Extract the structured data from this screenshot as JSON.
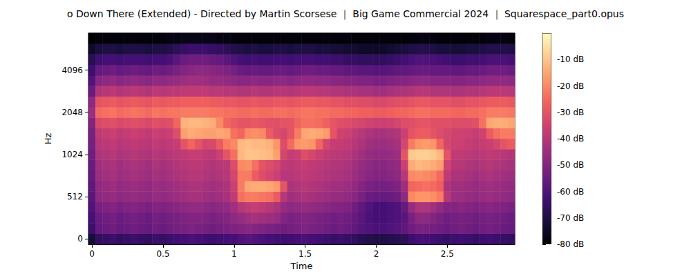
{
  "chart_data": {
    "type": "heatmap",
    "title": "o Down There (Extended) - Directed by Martin Scorsese ｜ Big Game Commercial 2024 ｜ Squarespace_part0.opus",
    "x_label": "Time",
    "y_label": "Hz",
    "x": [
      "0",
      null,
      null,
      null,
      null,
      null,
      null,
      null,
      null,
      null,
      "0.5",
      null,
      null,
      null,
      null,
      null,
      null,
      null,
      null,
      null,
      "1",
      null,
      null,
      null,
      null,
      null,
      null,
      null,
      null,
      null,
      "1.5",
      null,
      null,
      null,
      null,
      null,
      null,
      null,
      null,
      null,
      "2",
      null,
      null,
      null,
      null,
      null,
      null,
      null,
      null,
      null,
      "2.5",
      null,
      null,
      null,
      null,
      null,
      null,
      null,
      null,
      null
    ],
    "y": [
      "0",
      null,
      null,
      null,
      "512",
      null,
      null,
      null,
      "1024",
      null,
      null,
      null,
      "2048",
      null,
      null,
      null,
      "4096",
      null,
      null,
      null
    ],
    "values": [
      [
        -72,
        -66,
        -65,
        -64,
        -66,
        -65,
        -64,
        -65,
        -66,
        -64,
        -65,
        -64,
        -63,
        -62,
        -61,
        -62,
        -63,
        -64,
        -63,
        -62,
        -62,
        -60,
        -59,
        -60,
        -61,
        -62,
        -63,
        -64,
        -63,
        -62,
        -61,
        -62,
        -63,
        -64,
        -65,
        -64,
        -65,
        -66,
        -68,
        -69,
        -70,
        -70,
        -69,
        -68,
        -67,
        -64,
        -62,
        -62,
        -63,
        -64,
        -65,
        -64,
        -63,
        -64,
        -65,
        -64,
        -63,
        -64,
        -65,
        -66
      ],
      [
        -64,
        -56,
        -55,
        -54,
        -56,
        -55,
        -54,
        -55,
        -56,
        -54,
        -55,
        -54,
        -53,
        -52,
        -51,
        -52,
        -53,
        -54,
        -53,
        -52,
        -51,
        -50,
        -49,
        -50,
        -51,
        -52,
        -53,
        -54,
        -53,
        -52,
        -51,
        -52,
        -53,
        -54,
        -55,
        -54,
        -55,
        -57,
        -59,
        -60,
        -61,
        -61,
        -60,
        -59,
        -57,
        -54,
        -52,
        -52,
        -53,
        -54,
        -55,
        -54,
        -53,
        -54,
        -55,
        -54,
        -53,
        -54,
        -55,
        -56
      ],
      [
        -62,
        -55,
        -54,
        -53,
        -55,
        -54,
        -53,
        -54,
        -55,
        -53,
        -54,
        -53,
        -52,
        -51,
        -50,
        -50,
        -51,
        -52,
        -51,
        -50,
        -48,
        -46,
        -44,
        -43,
        -44,
        -45,
        -46,
        -50,
        -52,
        -51,
        -50,
        -51,
        -52,
        -53,
        -54,
        -53,
        -54,
        -56,
        -58,
        -61,
        -62,
        -62,
        -61,
        -60,
        -58,
        -52,
        -48,
        -48,
        -50,
        -52,
        -54,
        -53,
        -52,
        -53,
        -54,
        -53,
        -52,
        -53,
        -54,
        -55
      ],
      [
        -60,
        -52,
        -51,
        -50,
        -52,
        -51,
        -50,
        -51,
        -52,
        -50,
        -51,
        -50,
        -49,
        -48,
        -47,
        -47,
        -48,
        -49,
        -48,
        -47,
        -44,
        -40,
        -38,
        -37,
        -38,
        -40,
        -42,
        -46,
        -48,
        -47,
        -46,
        -47,
        -48,
        -49,
        -50,
        -50,
        -51,
        -54,
        -57,
        -60,
        -62,
        -62,
        -61,
        -60,
        -56,
        -46,
        -42,
        -42,
        -44,
        -47,
        -50,
        -50,
        -49,
        -50,
        -51,
        -50,
        -49,
        -50,
        -51,
        -52
      ],
      [
        -58,
        -48,
        -47,
        -46,
        -48,
        -47,
        -46,
        -47,
        -48,
        -46,
        -47,
        -46,
        -45,
        -44,
        -43,
        -43,
        -44,
        -45,
        -44,
        -43,
        -38,
        -24,
        -22,
        -22,
        -23,
        -24,
        -28,
        -40,
        -44,
        -43,
        -42,
        -43,
        -44,
        -45,
        -46,
        -46,
        -47,
        -49,
        -52,
        -55,
        -56,
        -56,
        -55,
        -54,
        -48,
        -20,
        -18,
        -18,
        -19,
        -22,
        -40,
        -45,
        -45,
        -46,
        -47,
        -46,
        -45,
        -46,
        -47,
        -48
      ],
      [
        -57,
        -47,
        -46,
        -45,
        -47,
        -46,
        -45,
        -46,
        -47,
        -45,
        -46,
        -45,
        -44,
        -43,
        -42,
        -42,
        -43,
        -44,
        -43,
        -42,
        -36,
        -22,
        -15,
        -14,
        -14,
        -15,
        -17,
        -30,
        -42,
        -41,
        -40,
        -41,
        -42,
        -43,
        -44,
        -44,
        -45,
        -47,
        -50,
        -52,
        -53,
        -53,
        -52,
        -51,
        -45,
        -26,
        -25,
        -24,
        -25,
        -27,
        -42,
        -44,
        -44,
        -45,
        -46,
        -45,
        -44,
        -45,
        -46,
        -47
      ],
      [
        -56,
        -45,
        -44,
        -43,
        -45,
        -44,
        -43,
        -44,
        -45,
        -43,
        -44,
        -43,
        -42,
        -41,
        -40,
        -40,
        -41,
        -42,
        -41,
        -40,
        -34,
        -22,
        -22,
        -28,
        -32,
        -34,
        -36,
        -40,
        -40,
        -39,
        -38,
        -39,
        -40,
        -41,
        -42,
        -42,
        -43,
        -45,
        -47,
        -49,
        -50,
        -50,
        -49,
        -48,
        -40,
        -20,
        -19,
        -20,
        -21,
        -25,
        -38,
        -42,
        -42,
        -43,
        -44,
        -43,
        -42,
        -43,
        -44,
        -45
      ],
      [
        -55,
        -44,
        -43,
        -42,
        -44,
        -43,
        -42,
        -43,
        -44,
        -42,
        -43,
        -42,
        -41,
        -40,
        -39,
        -39,
        -40,
        -41,
        -40,
        -39,
        -32,
        -20,
        -19,
        -24,
        -30,
        -32,
        -34,
        -38,
        -39,
        -38,
        -37,
        -38,
        -39,
        -40,
        -41,
        -41,
        -42,
        -44,
        -46,
        -48,
        -49,
        -49,
        -48,
        -47,
        -36,
        -14,
        -12,
        -13,
        -14,
        -16,
        -35,
        -40,
        -40,
        -41,
        -42,
        -41,
        -40,
        -41,
        -42,
        -43
      ],
      [
        -54,
        -42,
        -41,
        -40,
        -42,
        -41,
        -40,
        -41,
        -42,
        -40,
        -41,
        -40,
        -39,
        -38,
        -37,
        -37,
        -38,
        -39,
        -36,
        -30,
        -24,
        -12,
        -10,
        -10,
        -11,
        -12,
        -16,
        -34,
        -37,
        -36,
        -32,
        -34,
        -36,
        -38,
        -39,
        -39,
        -40,
        -42,
        -44,
        -46,
        -47,
        -47,
        -46,
        -45,
        -30,
        -9,
        -8,
        -8,
        -9,
        -12,
        -30,
        -38,
        -38,
        -39,
        -40,
        -39,
        -38,
        -39,
        -40,
        -41
      ],
      [
        -53,
        -40,
        -39,
        -38,
        -40,
        -39,
        -38,
        -39,
        -40,
        -38,
        -39,
        -38,
        -37,
        -30,
        -26,
        -30,
        -34,
        -33,
        -28,
        -22,
        -20,
        -12,
        -11,
        -12,
        -12,
        -13,
        -18,
        -32,
        -25,
        -18,
        -17,
        -18,
        -26,
        -34,
        -37,
        -37,
        -38,
        -40,
        -42,
        -44,
        -45,
        -45,
        -44,
        -43,
        -34,
        -22,
        -18,
        -17,
        -18,
        -26,
        -34,
        -36,
        -36,
        -37,
        -38,
        -37,
        -36,
        -34,
        -30,
        -28
      ],
      [
        -52,
        -38,
        -37,
        -36,
        -38,
        -37,
        -36,
        -37,
        -38,
        -36,
        -37,
        -36,
        -32,
        -16,
        -14,
        -15,
        -16,
        -16,
        -15,
        -16,
        -24,
        -26,
        -20,
        -19,
        -20,
        -28,
        -32,
        -34,
        -30,
        -22,
        -15,
        -14,
        -15,
        -17,
        -30,
        -35,
        -36,
        -38,
        -40,
        -42,
        -43,
        -43,
        -42,
        -41,
        -36,
        -30,
        -28,
        -28,
        -30,
        -32,
        -34,
        -35,
        -35,
        -36,
        -37,
        -35,
        -28,
        -24,
        -22,
        -22
      ],
      [
        -50,
        -33,
        -32,
        -31,
        -33,
        -32,
        -31,
        -32,
        -33,
        -31,
        -32,
        -31,
        -26,
        -13,
        -12,
        -12,
        -13,
        -14,
        -20,
        -26,
        -28,
        -30,
        -30,
        -29,
        -30,
        -31,
        -31,
        -30,
        -30,
        -26,
        -24,
        -24,
        -25,
        -27,
        -30,
        -31,
        -32,
        -33,
        -34,
        -35,
        -36,
        -36,
        -35,
        -34,
        -32,
        -31,
        -30,
        -30,
        -31,
        -31,
        -31,
        -32,
        -32,
        -32,
        -31,
        -24,
        -15,
        -14,
        -14,
        -15
      ],
      [
        -45,
        -25,
        -24,
        -23,
        -25,
        -24,
        -23,
        -24,
        -25,
        -23,
        -24,
        -23,
        -23,
        -22,
        -22,
        -22,
        -22,
        -23,
        -23,
        -24,
        -24,
        -25,
        -25,
        -24,
        -25,
        -25,
        -24,
        -24,
        -25,
        -24,
        -23,
        -23,
        -24,
        -24,
        -25,
        -25,
        -26,
        -26,
        -27,
        -27,
        -28,
        -28,
        -27,
        -26,
        -26,
        -25,
        -24,
        -24,
        -25,
        -25,
        -25,
        -26,
        -26,
        -25,
        -25,
        -24,
        -22,
        -22,
        -22,
        -23
      ],
      [
        -48,
        -30,
        -29,
        -28,
        -30,
        -29,
        -28,
        -29,
        -30,
        -28,
        -29,
        -28,
        -28,
        -27,
        -27,
        -27,
        -27,
        -28,
        -28,
        -29,
        -29,
        -30,
        -30,
        -29,
        -30,
        -30,
        -29,
        -29,
        -30,
        -29,
        -28,
        -28,
        -29,
        -29,
        -30,
        -30,
        -31,
        -31,
        -32,
        -32,
        -33,
        -33,
        -32,
        -31,
        -31,
        -30,
        -29,
        -29,
        -30,
        -30,
        -30,
        -31,
        -31,
        -30,
        -30,
        -29,
        -28,
        -28,
        -28,
        -29
      ],
      [
        -55,
        -41,
        -40,
        -39,
        -41,
        -40,
        -39,
        -40,
        -41,
        -39,
        -40,
        -39,
        -39,
        -38,
        -38,
        -38,
        -38,
        -39,
        -39,
        -40,
        -40,
        -41,
        -41,
        -40,
        -41,
        -41,
        -40,
        -40,
        -41,
        -40,
        -39,
        -39,
        -40,
        -40,
        -41,
        -41,
        -42,
        -42,
        -43,
        -43,
        -44,
        -44,
        -43,
        -42,
        -42,
        -41,
        -40,
        -40,
        -41,
        -41,
        -41,
        -42,
        -42,
        -41,
        -41,
        -40,
        -39,
        -39,
        -39,
        -40
      ],
      [
        -60,
        -49,
        -48,
        -47,
        -49,
        -48,
        -47,
        -48,
        -49,
        -47,
        -48,
        -47,
        -46,
        -45,
        -44,
        -44,
        -45,
        -46,
        -46,
        -47,
        -48,
        -49,
        -49,
        -48,
        -49,
        -49,
        -48,
        -48,
        -49,
        -48,
        -47,
        -47,
        -48,
        -48,
        -49,
        -49,
        -50,
        -50,
        -51,
        -51,
        -52,
        -52,
        -51,
        -50,
        -50,
        -49,
        -48,
        -48,
        -49,
        -49,
        -49,
        -50,
        -50,
        -49,
        -49,
        -48,
        -47,
        -47,
        -47,
        -48
      ],
      [
        -64,
        -56,
        -55,
        -54,
        -56,
        -55,
        -54,
        -55,
        -56,
        -54,
        -55,
        -54,
        -52,
        -50,
        -49,
        -48,
        -48,
        -49,
        -50,
        -51,
        -53,
        -55,
        -56,
        -55,
        -56,
        -56,
        -55,
        -55,
        -56,
        -55,
        -54,
        -54,
        -55,
        -55,
        -56,
        -56,
        -57,
        -57,
        -58,
        -58,
        -59,
        -59,
        -58,
        -57,
        -57,
        -56,
        -55,
        -55,
        -56,
        -56,
        -56,
        -57,
        -57,
        -56,
        -56,
        -55,
        -54,
        -54,
        -54,
        -55
      ],
      [
        -68,
        -63,
        -62,
        -62,
        -63,
        -62,
        -62,
        -62,
        -63,
        -62,
        -62,
        -61,
        -58,
        -55,
        -54,
        -54,
        -54,
        -55,
        -56,
        -58,
        -60,
        -62,
        -63,
        -62,
        -63,
        -63,
        -62,
        -62,
        -63,
        -62,
        -62,
        -62,
        -63,
        -63,
        -64,
        -64,
        -65,
        -65,
        -66,
        -66,
        -66,
        -66,
        -65,
        -64,
        -63,
        -61,
        -60,
        -60,
        -61,
        -62,
        -63,
        -64,
        -64,
        -63,
        -63,
        -62,
        -61,
        -61,
        -61,
        -62
      ],
      [
        -74,
        -71,
        -70,
        -70,
        -71,
        -70,
        -70,
        -70,
        -71,
        -70,
        -70,
        -69,
        -67,
        -65,
        -64,
        -64,
        -64,
        -65,
        -66,
        -67,
        -69,
        -70,
        -71,
        -70,
        -71,
        -71,
        -70,
        -70,
        -71,
        -70,
        -70,
        -70,
        -71,
        -71,
        -72,
        -72,
        -73,
        -73,
        -74,
        -74,
        -74,
        -74,
        -73,
        -72,
        -71,
        -70,
        -69,
        -69,
        -70,
        -71,
        -71,
        -72,
        -72,
        -71,
        -71,
        -70,
        -69,
        -69,
        -69,
        -70
      ],
      [
        -80,
        -79,
        -79,
        -79,
        -79,
        -79,
        -79,
        -79,
        -79,
        -79,
        -79,
        -78,
        -78,
        -77,
        -77,
        -77,
        -77,
        -77,
        -78,
        -78,
        -79,
        -79,
        -79,
        -79,
        -79,
        -79,
        -79,
        -79,
        -79,
        -79,
        -79,
        -79,
        -79,
        -79,
        -79,
        -79,
        -79,
        -79,
        -79,
        -79,
        -79,
        -79,
        -79,
        -79,
        -79,
        -79,
        -78,
        -78,
        -78,
        -79,
        -79,
        -79,
        -79,
        -79,
        -79,
        -79,
        -78,
        -78,
        -78,
        -79
      ]
    ],
    "colorbar": {
      "range": [
        -80,
        0
      ],
      "ticks": [
        {
          "value": -80,
          "label": "-80 dB"
        },
        {
          "value": -70,
          "label": "-70 dB"
        },
        {
          "value": -60,
          "label": "-60 dB"
        },
        {
          "value": -50,
          "label": "-50 dB"
        },
        {
          "value": -40,
          "label": "-40 dB"
        },
        {
          "value": -30,
          "label": "-30 dB"
        },
        {
          "value": -20,
          "label": "-20 dB"
        },
        {
          "value": -10,
          "label": "-10 dB"
        }
      ]
    }
  }
}
